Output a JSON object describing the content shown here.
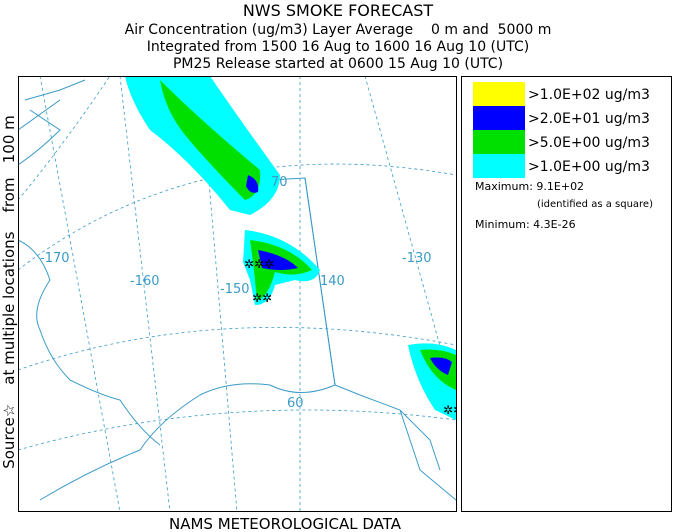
{
  "header": {
    "title": "NWS SMOKE FORECAST",
    "lines": [
      "Air Concentration (ug/m3) Layer Average    0 m and  5000 m",
      "Integrated from 1500 16 Aug to 1600 16 Aug 10 (UTC)",
      "PM25 Release started at 0600 15 Aug 10 (UTC)"
    ]
  },
  "side_label": "Source☆    at multiple locations    from   100 m",
  "footer": "NAMS METEOROLOGICAL DATA",
  "legend": {
    "items": [
      {
        "label": ">1.0E+02 ug/m3",
        "color": "#ffff00"
      },
      {
        "label": ">2.0E+01 ug/m3",
        "color": "#0000ff"
      },
      {
        "label": ">5.0E+00 ug/m3",
        "color": "#00e000"
      },
      {
        "label": ">1.0E+00 ug/m3",
        "color": "#00ffff"
      }
    ],
    "maximum": "Maximum: 9.1E+02",
    "maximum_note": "(identified as a square)",
    "minimum": "Minimum: 4.3E-26"
  },
  "map": {
    "lon_labels": [
      "-170",
      "-160",
      "-150",
      "140",
      "-130"
    ],
    "lat_labels": [
      "70",
      "60"
    ]
  }
}
